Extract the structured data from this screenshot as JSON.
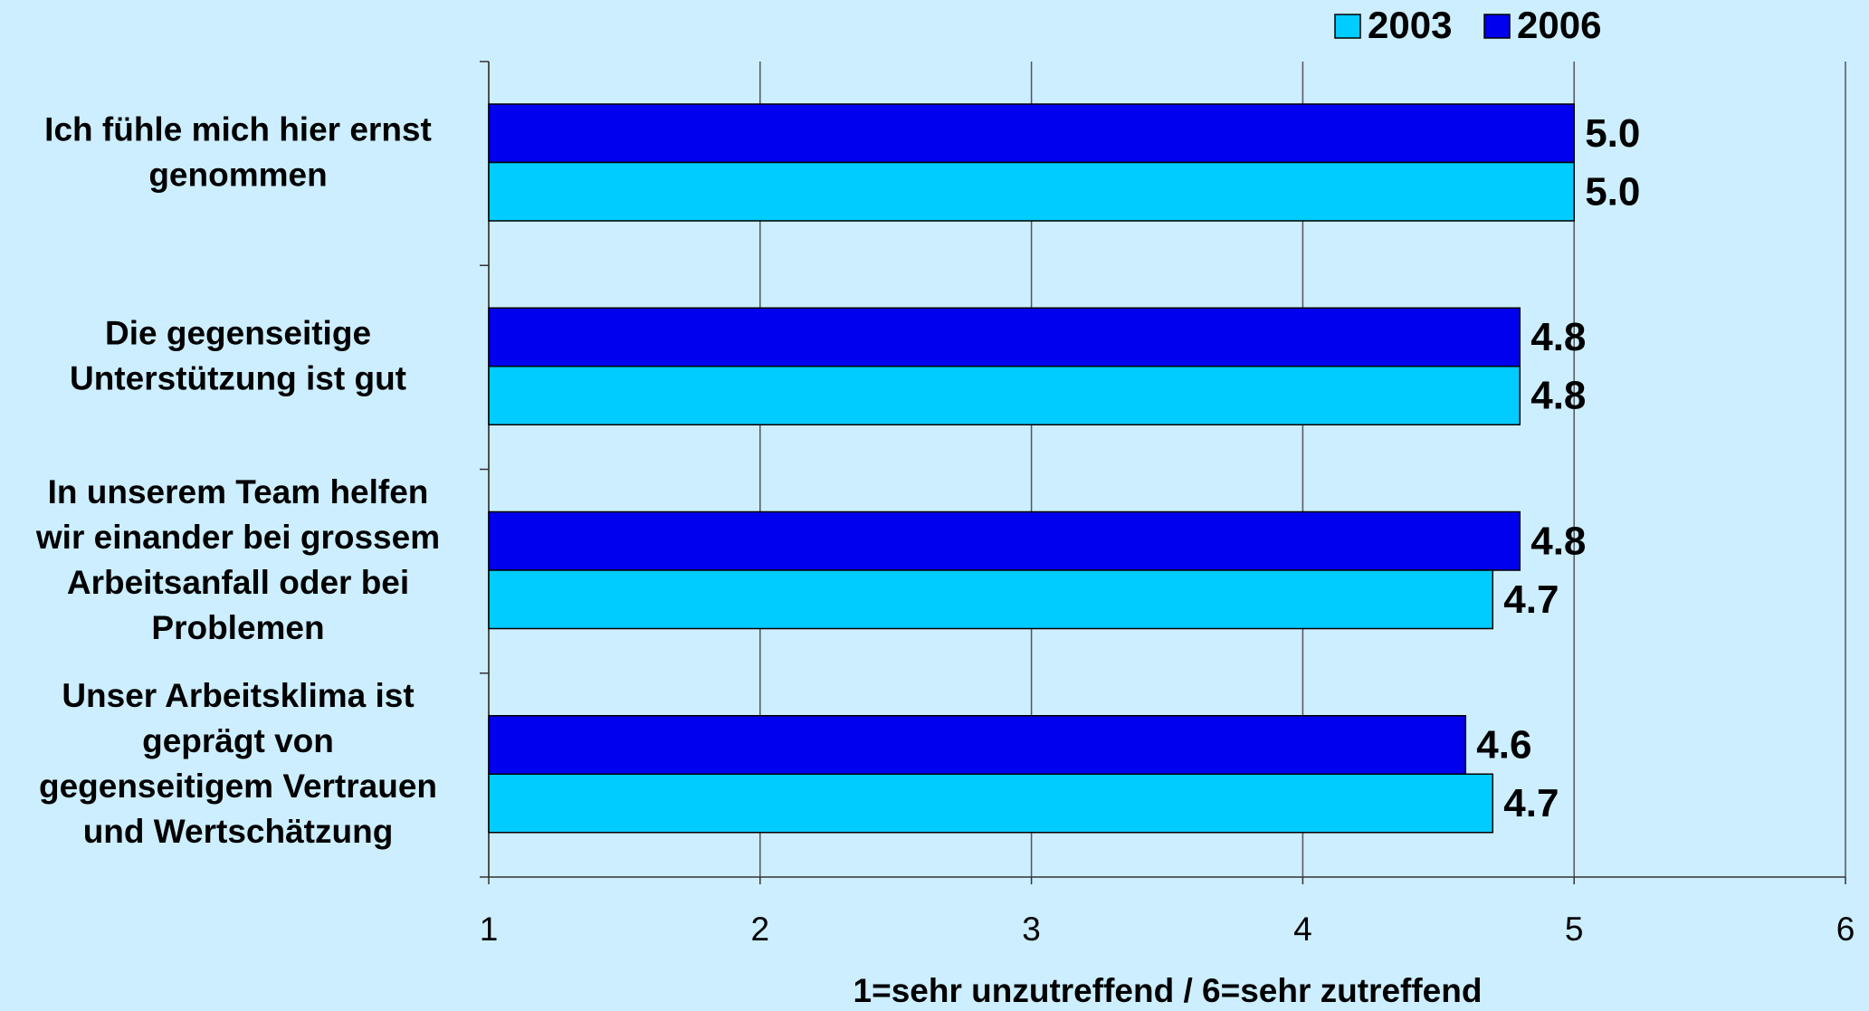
{
  "chart_data": {
    "type": "barh",
    "categories": [
      [
        "Ich fühle mich hier ernst",
        "genommen"
      ],
      [
        "Die gegenseitige",
        "Unterstützung ist gut"
      ],
      [
        "In unserem Team helfen",
        "wir einander bei grossem",
        "Arbeitsanfall oder bei",
        "Problemen"
      ],
      [
        "Unser Arbeitsklima ist",
        "geprägt von",
        "gegenseitigem Vertrauen",
        "und Wertschätzung"
      ]
    ],
    "series": [
      {
        "name": "2003",
        "color": "#00ccff",
        "values": [
          5.0,
          4.8,
          4.7,
          4.7
        ],
        "value_labels": [
          "5.0",
          "4.8",
          "4.7",
          "4.7"
        ]
      },
      {
        "name": "2006",
        "color": "#0000ee",
        "values": [
          5.0,
          4.8,
          4.8,
          4.6
        ],
        "value_labels": [
          "5.0",
          "4.8",
          "4.8",
          "4.6"
        ]
      }
    ],
    "xlim": [
      1,
      6
    ],
    "xticks": [
      1,
      2,
      3,
      4,
      5,
      6
    ],
    "xlabel": "1=sehr unzutreffend / 6=sehr zutreffend",
    "grid": true,
    "legend": "top-right"
  }
}
